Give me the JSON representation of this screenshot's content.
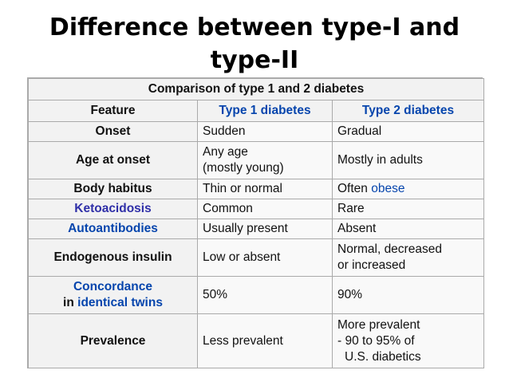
{
  "title": {
    "line1": "Difference between type-I and",
    "line2": "type-II"
  },
  "table": {
    "caption": "Comparison of type 1 and 2 diabetes",
    "headers": {
      "feature": "Feature",
      "type1": "Type 1 diabetes",
      "type2": "Type 2 diabetes"
    },
    "rows": [
      {
        "feature": "Onset",
        "type1": "Sudden",
        "type2": "Gradual"
      },
      {
        "feature": "Age at onset",
        "type1_l1": "Any age",
        "type1_l2": "(mostly young)",
        "type2": "Mostly in adults"
      },
      {
        "feature": "Body habitus",
        "type1": "Thin or normal",
        "type2_prefix": "Often ",
        "type2_link": "obese"
      },
      {
        "feature": "Ketoacidosis",
        "type1": "Common",
        "type2": "Rare"
      },
      {
        "feature": "Autoantibodies",
        "type1": "Usually present",
        "type2": "Absent"
      },
      {
        "feature": "Endogenous insulin",
        "type1": "Low or absent",
        "type2_l1": "Normal, decreased",
        "type2_l2": "or increased"
      },
      {
        "feature_l1": "Concordance",
        "feature_l2_prefix": "in ",
        "feature_l2_link": "identical twins",
        "type1": "50%",
        "type2": "90%"
      },
      {
        "feature": "Prevalence",
        "type1": "Less prevalent",
        "type2_l1": "More prevalent",
        "type2_l2": "- 90 to 95% of",
        "type2_l3": "U.S. diabetics"
      }
    ]
  },
  "colors": {
    "link": "#0645ad",
    "visited_link": "#2f2fa8",
    "header_bg": "#f2f2f2",
    "cell_bg": "#f9f9f9",
    "border": "#aaaaaa"
  }
}
